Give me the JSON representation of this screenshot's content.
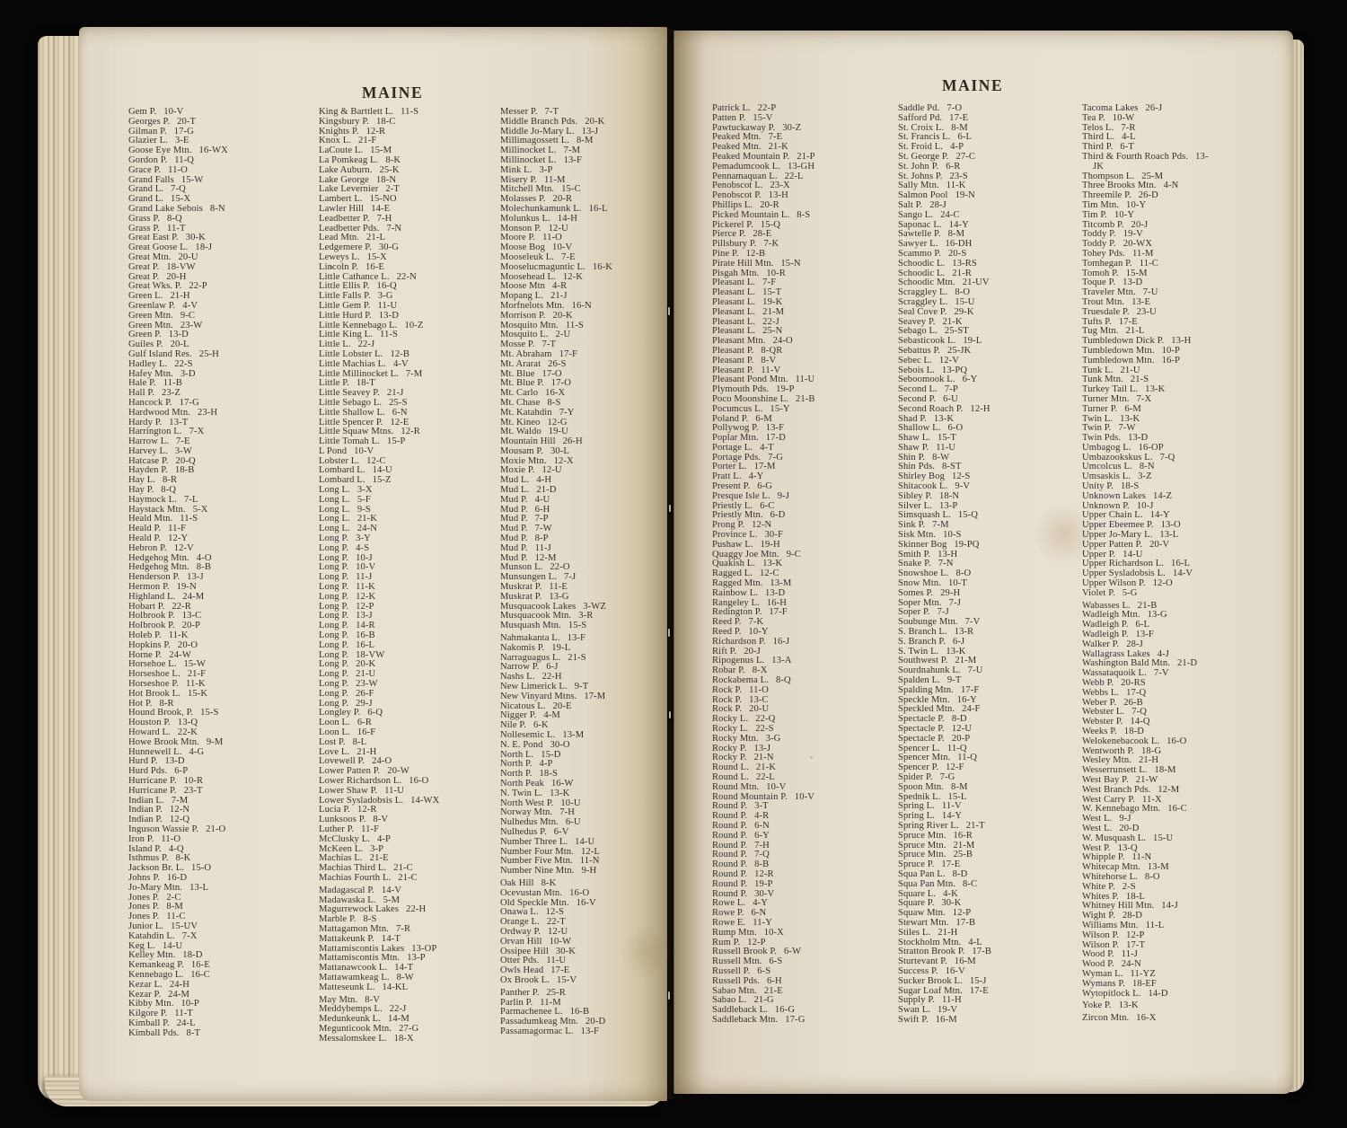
{
  "headers": {
    "left": "MAINE",
    "right": "MAINE"
  },
  "columns": [
    {
      "groups": [
        [
          "Gem P.|10-V",
          "Georges P.|20-T",
          "Gilman P.|17-G",
          "Glazier L.|3-E",
          "Goose Eye Mtn.|16-WX",
          "Gordon P.|11-Q",
          "Grace P.|11-O",
          "Grand Falls|15-W",
          "Grand L.|7-Q",
          "Grand L.|15-X",
          "Grand Lake Sebois|8-N",
          "Grass P.|8-Q",
          "Grass P.|11-T",
          "Great East P.|30-K",
          "Great Goose L.|18-J",
          "Great Mtn.|20-U",
          "Great P.|18-VW",
          "Great P.|20-H",
          "Great Wks. P.|22-P",
          "Green L.|21-H",
          "Greenlaw P.|4-V",
          "Green Mtn.|9-C",
          "Green Mtn.|23-W",
          "Green P.|13-D",
          "Guiles P.|20-L",
          "Gulf Island Res.|25-H",
          "Hadley L.|22-S",
          "Hafey Mtn.|3-D",
          "Hale P.|11-B",
          "Hall P.|23-Z",
          "Hancock P.|17-G",
          "Hardwood Mtn.|23-H",
          "Hardy P.|13-T",
          "Harrington L.|7-X",
          "Harrow L.|7-E",
          "Harvey L.|3-W",
          "Hatcase P.|20-Q",
          "Hayden P.|18-B",
          "Hay L.|8-R",
          "Hay P.|8-Q",
          "Haymock L.|7-L",
          "Haystack Mtn.|5-X",
          "Heald Mtn.|11-S",
          "Heald P.|11-F",
          "Heald P.|12-Y",
          "Hebron P.|12-V",
          "Hedgehog Mtn.|4-O",
          "Hedgehog Mtn.|8-B",
          "Henderson P.|13-J",
          "Hermon P.|19-N",
          "Highland L.|24-M",
          "Hobart P.|22-R",
          "Holbrook P.|13-C",
          "Holbrook P.|20-P",
          "Holeb P.|11-K",
          "Hopkins P.|20-O",
          "Horne P.|24-W",
          "Horsehoe L.|15-W",
          "Horseshoe L.|21-F",
          "Horseshoe P.|11-K",
          "Hot Brook L.|15-K",
          "Hot P.|8-R",
          "Hound Brook, P.|15-S",
          "Houston P.|13-Q",
          "Howard L.|22-K",
          "Howe Brook Mtn.|9-M",
          "Hunnewell L.|4-G",
          "Hurd P.|13-D",
          "Hurd Pds.|6-P",
          "Hurricane P.|10-R",
          "Hurricane P.|23-T",
          "Indian L.|7-M",
          "Indian P.|12-N",
          "Indian P.|12-Q",
          "Inguson Wassie P.|21-O",
          "Iron P.|11-O",
          "Island P.|4-Q",
          "Isthmus P.|8-K",
          "Jackson Br. L.|15-O",
          "Johns P.|16-D",
          "Jo-Mary Mtn.|13-L",
          "Jones P.|2-C",
          "Jones P.|8-M",
          "Jones P.|11-C",
          "Junior L.|15-UV",
          "Katahdin L.|7-X",
          "Keg L.|14-U",
          "Kelley Mtn.|18-D",
          "Kemankeag P.|16-E",
          "Kennebago L.|16-C",
          "Kezar L.|24-H",
          "Kezar P.|24-M",
          "Kibby Mtn.|10-P",
          "Kilgore P.|11-T",
          "Kimball P.|24-L",
          "Kimball Pds.|8-T"
        ]
      ]
    },
    {
      "groups": [
        [
          "King & Barttlett L.|11-S",
          "Kingsbury P.|18-C",
          "Knights P.|12-R",
          "Knox L.|21-F",
          "LaCoute L.|15-M",
          "La Pomkeag L.|8-K",
          "Lake Auburn.|25-K",
          "Lake George|18-N",
          "Lake Levernier|2-T",
          "Lambert L.|15-NO",
          "Lawler Hill|14-E",
          "Leadbetter P.|7-H",
          "Leadbetter Pds.|7-N",
          "Lead Mtn.|21-L",
          "Ledgemere P.|30-G",
          "Leweys L.|15-X",
          "Lincoln P.|16-E",
          "Little Cathance L.|22-N",
          "Little Ellis P.|16-Q",
          "Little Falls P.|3-G",
          "Little Gem P.|11-U",
          "Little Hurd P.|13-D",
          "Little Kennebago L.|10-Z",
          "Little King L.|11-S",
          "Little L.|22-J",
          "Little Lobster L.|12-B",
          "Little Machias L.|4-V",
          "Little Millinocket L.|7-M",
          "Little P.|18-T",
          "Little Seavey P.|21-J",
          "Little Sebago L.|25-S",
          "Little Shallow L.|6-N",
          "Little Spencer P.|12-E",
          "Little Squaw Mtns.|12-R",
          "Little Tomah L.|15-P",
          "L Pond|10-V",
          "Lobster L.|12-C",
          "Lombard L.|14-U",
          "Lombard L.|15-Z",
          "Long L.|3-X",
          "Long L.|5-F",
          "Long L.|9-S",
          "Long L.|21-K",
          "Long L.|24-N",
          "Long P.|3-Y",
          "Long P.|4-S",
          "Long P.|10-J",
          "Long P.|10-V",
          "Long P.|11-J",
          "Long P.|11-K",
          "Long P.|12-K",
          "Long P.|12-P",
          "Long P.|13-J",
          "Long P.|14-R",
          "Long P.|16-B",
          "Long P.|16-L",
          "Long P.|18-VW",
          "Long P.|20-K",
          "Long P.|21-U",
          "Long P.|23-W",
          "Long P.|26-F",
          "Long P.|29-J",
          "Longley P.|6-Q",
          "Loon L.|6-R",
          "Loon L.|16-F",
          "Lost P.|8-L",
          "Love L.|21-H",
          "Lovewell P.|24-O",
          "Lower Patten P.|20-W",
          "Lower Richardson L.|16-O",
          "Lower Shaw P.|11-U",
          "Lower Sysladobsis L.|14-WX",
          "Lucia P.|12-R",
          "Lunksoos P.|8-V",
          "Luther P.|11-F",
          "McClusky L.|4-P",
          "McKeen L.|3-P",
          "Machias L.|21-E",
          "Machias Third L.|21-C",
          "Machias Fourth L.|21-C"
        ],
        [
          "Madagascal P.|14-V",
          "Madawaska L.|5-M",
          "Magurrewock Lakes|22-H",
          "Marble P.|8-S",
          "Mattagamon Mtn.|7-R",
          "Mattakeunk P.|14-T",
          "Mattamiscontis Lakes|13-OP",
          "Mattamiscontis Mtn.|13-P",
          "Mattanawcook L.|14-T",
          "Mattawamkeag L.|8-W",
          "Matteseunk L.|14-KL"
        ],
        [
          "May Mtn.|8-V",
          "Meddybemps L.|22-J",
          "Medunkeunk L.|14-M",
          "Megunticook Mtn.|27-G",
          "Messalomskee L.|18-X"
        ]
      ]
    },
    {
      "groups": [
        [
          "Messer P.|7-T",
          "Middle Branch Pds.|20-K",
          "Middle Jo-Mary L.|13-J",
          "Millimagossett L.|8-M",
          "Millinocket L.|7-M",
          "Millinocket L.|13-F",
          "Mink L.|3-P",
          "Misery P.|11-M",
          "Mitchell Mtn.|15-C",
          "Molasses P.|20-R",
          "Molechunkamunk L.|16-L",
          "Molunkus L.|14-H",
          "Monson P.|12-U",
          "Moore P.|11-O",
          "Moose Bog|10-V",
          "Mooseleuk L.|7-E",
          "Mooselucmaguntic L.|16-K",
          "Moosehead L.|12-K",
          "Moose Mtn|4-R",
          "Mopang L.|21-J",
          "Morfnelots Mtn.|16-N",
          "Morrison P.|20-K",
          "Mosquito Mtn.|11-S",
          "Mosquito L.|2-U",
          "Mosse P.|7-T",
          "Mt. Abraham|17-F",
          "Mt. Ararat|26-S",
          "Mt. Blue|17-O",
          "Mt. Blue P.|17-O",
          "Mt. Carlo|16-X",
          "Mt. Chase|8-S",
          "Mt. Katahdin|7-Y",
          "Mt. Kineo|12-G",
          "Mt. Waldo|19-U",
          "Mountain Hill|26-H",
          "Mousam P.|30-L",
          "Moxie Mtn.|12-X",
          "Moxie P.|12-U",
          "Mud L.|4-H",
          "Mud L.|21-D",
          "Mud P.|4-U",
          "Mud P.|6-H",
          "Mud P.|7-P",
          "Mud P.|7-W",
          "Mud P.|8-P",
          "Mud P.|11-J",
          "Mud P.|12-M",
          "Munson L.|22-O",
          "Munsungen L.|7-J",
          "Muskrat P.|11-E",
          "Muskrat P.|13-G",
          "Musquacook Lakes|3-WZ",
          "Musquacook Mtn.|3-R",
          "Musquash Mtn.|15-S"
        ],
        [
          "Nahmakanta L.|13-F",
          "Nakomis P.|19-L",
          "Narraguagus L.|21-S",
          "Narrow P.|6-J",
          "Nashs L.|22-H",
          "New Limerick L.|9-T",
          "New Vinyard Mtns.|17-M",
          "Nicatous L.|20-E",
          "Nigger P.|4-M",
          "Nile P.|6-K",
          "Nollesemic L.|13-M",
          "N. E. Pond|30-O",
          "North L.|15-D",
          "North P.|4-P",
          "North P.|18-S",
          "North Peak|16-W",
          "N. Twin L.|13-K",
          "North West P.|10-U",
          "Norway Mtn.|7-H",
          "Nulhedus Mtn.|6-U",
          "Nulhedus P.|6-V",
          "Number Three L.|14-U",
          "Number Four Mtn.|12-L",
          "Number Five Mtn.|11-N",
          "Number Nine Mtn.|9-H"
        ],
        [
          "Oak Hill|8-K",
          "Ocevustan Mtn.|16-O",
          "Old Speckle Mtn.|16-V",
          "Onawa L.|12-S",
          "Orange L.|22-T",
          "Ordway P.|12-U",
          "Orvan Hill|10-W",
          "Ossipee Hill|30-K",
          "Otter Pds.|11-U",
          "Owls Head|17-E",
          "Ox Brook L.|15-V"
        ],
        [
          "Panther P.|25-R",
          "Parlin P.|11-M",
          "Parmachenee L.|16-B",
          "Passadumkeag Mtn.|20-D",
          "Passamagormac L.|13-F"
        ]
      ]
    },
    {
      "groups": [
        [
          "Patrick L.|22-P",
          "Patten P.|15-V",
          "Pawtuckaway P.|30-Z",
          "Peaked Mtn.|7-E",
          "Peaked Mtn.|21-K",
          "Peaked Mountain P.|21-P",
          "Pemadumcook L.|13-GH",
          "Pennamaquan L.|22-L",
          "Penobscot L.|23-X",
          "Penobscot P.|13-H",
          "Phillips L.|20-R",
          "Picked Mountain L.|8-S",
          "Pickerel P.|15-Q",
          "Pierce P.|28-E",
          "Pillsbury P.|7-K",
          "Pine P.|12-B",
          "Pirate Hill Mtn.|15-N",
          "Pisgah Mtn.|10-R",
          "Pleasant L.|7-F",
          "Pleasant L.|15-T",
          "Pleasant L.|19-K",
          "Pleasant L.|21-M",
          "Pleasant L.|22-J",
          "Pleasant L.|25-N",
          "Pleasant Mtn.|24-O",
          "Pleasant P.|8-QR",
          "Pleasant P.|8-V",
          "Pleasant P.|11-V",
          "Pleasant Pond Mtn.|11-U",
          "Plymouth Pds.|19-P",
          "Poco Moonshine L.|21-B",
          "Pocumcus L.|15-Y",
          "Poland P.|6-M",
          "Pollywog P.|13-F",
          "Poplar Mtn.|17-D",
          "Portage L.|4-T",
          "Portage Pds.|7-G",
          "Porter L.|17-M",
          "Pratt L.|4-Y",
          "Present P.|6-G",
          "Presque Isle L.|9-J",
          "Priestly L.|6-C",
          "Priestly Mtn.|6-D",
          "Prong P.|12-N",
          "Province L.|30-F",
          "Pushaw L.|19-H",
          "Quaggy Joe Mtn.|9-C",
          "Quakish L.|13-K",
          "Ragged L.|12-C",
          "Ragged Mtn.|13-M",
          "Rainbow L.|13-D",
          "Rangeley L.|16-H",
          "Redington P.|17-F",
          "Reed P.|7-K",
          "Reed P.|10-Y",
          "Richardson P.|16-J",
          "Rift P.|20-J",
          "Ripogenus L.|13-A",
          "Robar P.|8-X",
          "Rockabema L.|8-Q",
          "Rock P.|11-O",
          "Rock P.|13-C",
          "Rock P.|20-U",
          "Rocky L.|22-Q",
          "Rocky L.|22-S",
          "Rocky Mtn.|3-G",
          "Rocky P.|13-J",
          "Rocky P.|21-N",
          "Round L.|21-K",
          "Round L.|22-L",
          "Round Mtn.|10-V",
          "Round Mountain P.|10-V",
          "Round P.|3-T",
          "Round P.|4-R",
          "Round P.|6-N",
          "Round P.|6-Y",
          "Round P.|7-H",
          "Round P.|7-Q",
          "Round P.|8-B",
          "Round P.|12-R",
          "Round P.|19-P",
          "Round P.|30-V",
          "Rowe L.|4-Y",
          "Rowe P.|6-N",
          "Rowe E.|11-Y",
          "Rump Mtn.|10-X",
          "Rum P.|12-P",
          "Russell Brook P.|6-W",
          "Russell Mtn.|6-S",
          "Russell P.|6-S",
          "Russell Pds.|6-H",
          "Sabao Mtn.|21-E",
          "Sabao L.|21-G",
          "Saddleback L.|16-G",
          "Saddleback Mtn.|17-G"
        ]
      ]
    },
    {
      "groups": [
        [
          "Saddle Pd.|7-O",
          "Safford Pd.|17-E",
          "St. Croix L.|8-M",
          "St. Francis L.|6-L",
          "St. Froid L.|4-P",
          "St. George P.|27-C",
          "St. John P.|6-R",
          "St. Johns P.|23-S",
          "Sally Mtn.|11-K",
          "Salmon Pool|19-N",
          "Salt P.|28-J",
          "Sango L.|24-C",
          "Saponac L.|14-Y",
          "Sawtelle P.|8-M",
          "Sawyer L.|16-DH",
          "Scammo P.|20-S",
          "Schoodic L.|13-RS",
          "Schoodic L.|21-R",
          "Schoodic Mtn.|21-UV",
          "Scraggley L.|8-O",
          "Scraggley L.|15-U",
          "Seal Cove P.|29-K",
          "Seavey P.|21-K",
          "Sebago L.|25-ST",
          "Sebasticook L.|19-L",
          "Sebattus P.|25-JK",
          "Sebec L.|12-V",
          "Sebois L.|13-PQ",
          "Seboomook L.|6-Y",
          "Second L.|7-P",
          "Second P.|6-U",
          "Second Roach P.|12-H",
          "Shad P.|13-K",
          "Shallow L.|6-O",
          "Shaw L.|15-T",
          "Shaw P.|11-U",
          "Shin P.|8-W",
          "Shin Pds.|8-ST",
          "Shirley Bog|12-S",
          "Shitacook L.|9-V",
          "Sibley P.|18-N",
          "Silver L.|13-P",
          "Simsquash L.|15-Q",
          "Sink P.|7-M",
          "Sisk Mtn.|10-S",
          "Skinner Bog|19-PQ",
          "Smith P.|13-H",
          "Snake P.|7-N",
          "Snowshoe L.|8-O",
          "Snow Mtn.|10-T",
          "Somes P.|29-H",
          "Soper Mtn.|7-J",
          "Soper P.|7-J",
          "Soubunge Mtn.|7-V",
          "S. Branch L.|13-R",
          "S. Branch P.|6-J",
          "S. Twin L.|13-K",
          "Southwest P.|21-M",
          "Sourdnahunk L.|7-U",
          "Spalden L.|9-T",
          "Spalding Mtn.|17-F",
          "Speckle Mtn.|16-Y",
          "Speckled Mtn.|24-F",
          "Spectacle P.|8-D",
          "Spectacle P.|12-U",
          "Spectacle P.|20-P",
          "Spencer L.|11-Q",
          "Spencer Mtn.|11-Q",
          "Spencer P.|12-F",
          "Spider P.|7-G",
          "Spoon Mtn.|8-M",
          "Spednik L.|15-L",
          "Spring L.|11-V",
          "Spring L.|14-Y",
          "Spring River L.|21-T",
          "Spruce Mtn.|16-R",
          "Spruce Mtn.|21-M",
          "Spruce Mtn.|25-B",
          "Spruce P.|17-E",
          "Squa Pan L.|8-D",
          "Squa Pan Mtn.|8-C",
          "Square L.|4-K",
          "Square P.|30-K",
          "Squaw Mtn.|12-P",
          "Stewart Mtn.|17-B",
          "Stiles L.|21-H",
          "Stockholm Mtn.|4-L",
          "Stratton Brook P.|17-B",
          "Sturtevant P.|16-M",
          "Success P.|16-V",
          "Sucker Brook L.|15-J",
          "Sugar Loaf Mtn.|17-E",
          "Supply P.|11-H",
          "Swan L.|19-V",
          "Swift P.|16-M"
        ]
      ]
    },
    {
      "groups": [
        [
          "Tacoma Lakes|26-J",
          "Tea P.|10-W",
          "Telos L.|7-R",
          "Third L.|4-L",
          "Third P.|6-T",
          "Third & Fourth Roach Pds.|13-JK",
          "Thompson L.|25-M",
          "Three Brooks Mtn.|4-N",
          "Threemile P.|26-D",
          "Tim Mtn.|10-Y",
          "Tim P.|10-Y",
          "Titcomb P.|20-J",
          "Toddy P.|19-V",
          "Toddy P.|20-WX",
          "Tohey Pds.|11-M",
          "Tomhegan P.|11-C",
          "Tomoh P.|15-M",
          "Toque P.|13-D",
          "Traveler Mtn.|7-U",
          "Trout Mtn.|13-E",
          "Truesdale P.|23-U",
          "Tufts P.|17-E",
          "Tug Mtn.|21-L",
          "Tumbledown Dick P.|13-H",
          "Tumbledown Mtn.|10-P",
          "Tumbledown Mtn.|16-P",
          "Tunk L.|21-U",
          "Tunk Mtn.|21-S",
          "Turkey Tail L.|13-K",
          "Turner Mtn.|7-X",
          "Turner P.|6-M",
          "Twin L.|13-K",
          "Twin P.|7-W",
          "Twin Pds.|13-D",
          "Umbagog L.|16-OP",
          "Umbazookskus L.|7-Q",
          "Umcolcus L.|8-N",
          "Umsaskis L.|3-Z",
          "Unity P.|18-S",
          "Unknown Lakes|14-Z",
          "Unknown P.|10-J",
          "Upper Chain L.|14-Y",
          "Upper Ebeemee P.|13-O",
          "Upper Jo-Mary L.|13-L",
          "Upper Patten P.|20-V",
          "Upper P.|14-U",
          "Upper Richardson L.|16-L",
          "Upper Sysladobsis L.|14-V",
          "Upper Wilson P.|12-O",
          "Violet P.|5-G"
        ],
        [
          "Wabasses L.|21-B",
          "Wadleigh Mtn.|13-G",
          "Wadleigh P.|6-L",
          "Wadleigh P.|13-F",
          "Walker P.|28-J",
          "Wallagrass Lakes|4-J",
          "Washington Bald Mtn.|21-D",
          "Wassataquoik L.|7-V",
          "Webb P.|20-RS",
          "Webbs L.|17-Q",
          "Weber P.|26-B",
          "Webster L.|7-Q",
          "Webster P.|14-Q",
          "Weeks P.|18-D",
          "Welokenebacook L.|16-O",
          "Wentworth P.|18-G",
          "Wesley Mtn.|21-H",
          "Wesserrunsett L.|18-M",
          "West Bay P.|21-W",
          "West Branch Pds.|12-M",
          "West Carry P.|11-X",
          "W. Kennebago Mtn.|16-C",
          "West L.|9-J",
          "West L.|20-D",
          "W. Musquash L.|15-U",
          "West P.|13-Q",
          "Whipple P.|11-N",
          "Whitecap Mtn.|13-M",
          "Whitehorse L.|8-O",
          "White P.|2-S",
          "Whites P.|18-L",
          "Whitney Hill Mtn.|14-J",
          "Wight P.|28-D",
          "Williams Mtn.|11-L",
          "Wilson P.|12-P",
          "Wilson P.|17-T",
          "Wood P.|11-J",
          "Wood P.|24-N",
          "Wyman L.|11-YZ",
          "Wymans P.|18-EF",
          "Wytopitlock L.|14-D"
        ],
        [
          "Yoke P.|13-K"
        ],
        [
          "Zircon Mtn.|16-X"
        ]
      ]
    }
  ]
}
